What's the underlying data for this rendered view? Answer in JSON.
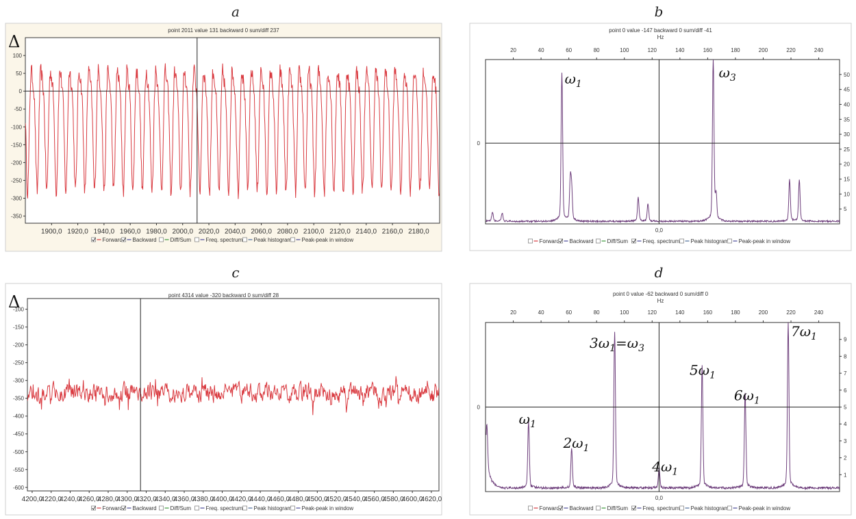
{
  "panel_letters": [
    "a",
    "b",
    "c",
    "d"
  ],
  "legend_items": [
    "Forward",
    "Backward",
    "Diff/Sum",
    "Freq. spectrum",
    "Peak histogram",
    "Peak-peak in window"
  ],
  "chart_data": [
    {
      "id": "a",
      "type": "line",
      "title": "point 2011 value 131 backward 0  sum/diff 237",
      "ylabel": "Δ",
      "xlim": [
        1880,
        2196
      ],
      "ylim": [
        -370,
        150
      ],
      "xticks": [
        1900,
        1920,
        1940,
        1960,
        1980,
        2000,
        2020,
        2040,
        2060,
        2080,
        2100,
        2120,
        2140,
        2160,
        2180
      ],
      "xtick_labels": [
        "1900,0",
        "1920,0",
        "1940,0",
        "1960,0",
        "1980,0",
        "2000,0",
        "2020,0",
        "2040,0",
        "2060,0",
        "2080,0",
        "2100,0",
        "2120,0",
        "2140,0",
        "2160,0",
        "2180,0"
      ],
      "yticks": [
        100,
        50,
        0,
        -50,
        -100,
        -150,
        -200,
        -250,
        -300,
        -350
      ],
      "ytick_labels": [
        "100",
        "50",
        "0",
        "-50",
        "-100",
        "-150",
        "-200",
        "-250",
        "-300",
        "-350"
      ],
      "zero_line": 0,
      "cursor_x": 2011,
      "series": [
        {
          "color": "#d9393f",
          "kind": "oscillation",
          "period": 7.3,
          "max": 115,
          "min": -275,
          "x_start": 1880,
          "x_end": 2196
        }
      ],
      "legend_checked": [
        true,
        true,
        false,
        false,
        false,
        false
      ]
    },
    {
      "id": "b",
      "type": "line",
      "title": "point 0 value -147 backward 0  sum/diff -41",
      "top_axis_label": "Hz",
      "xlim": [
        0,
        255
      ],
      "ylim": [
        0,
        55
      ],
      "xticks": [
        20,
        40,
        60,
        80,
        100,
        120,
        140,
        160,
        180,
        200,
        220,
        240
      ],
      "xtick_labels": [
        "20",
        "40",
        "60",
        "80",
        "100",
        "120",
        "140",
        "160",
        "180",
        "200",
        "220",
        "240"
      ],
      "yticks_right": [
        5,
        10,
        15,
        20,
        25,
        30,
        35,
        40,
        45,
        50
      ],
      "ytick_right_labels": [
        "5",
        "10",
        "15",
        "20",
        "25",
        "30",
        "35",
        "40",
        "45",
        "50"
      ],
      "left_marker": "0",
      "bottom_center_label": "0,0",
      "cursor_x": 125,
      "hline_y": 27,
      "series": [
        {
          "color": "#6e3f7c",
          "kind": "spectrum",
          "baseline": 0.6,
          "peaks": [
            [
              5,
              2.8
            ],
            [
              12,
              2.5
            ],
            [
              55,
              46
            ],
            [
              61,
              12
            ],
            [
              62,
              10
            ],
            [
              110,
              7.5
            ],
            [
              117,
              5.5
            ],
            [
              164,
              51
            ],
            [
              166,
              8
            ],
            [
              219,
              13
            ],
            [
              226,
              13
            ]
          ]
        }
      ],
      "annotations": [
        {
          "text": "ω",
          "sub": "1",
          "x": 57,
          "y": 47
        },
        {
          "text": "ω",
          "sub": "3",
          "x": 168,
          "y": 49
        }
      ],
      "legend_checked": [
        false,
        true,
        false,
        true,
        false,
        false
      ]
    },
    {
      "id": "c",
      "type": "line",
      "title": "point 4314 value -320 backward 0  sum/diff 28",
      "ylabel": "Δ",
      "xlim": [
        4195,
        4628
      ],
      "ylim": [
        -610,
        -70
      ],
      "xticks": [
        4200,
        4220,
        4240,
        4260,
        4280,
        4300,
        4320,
        4340,
        4360,
        4380,
        4400,
        4420,
        4440,
        4460,
        4480,
        4500,
        4520,
        4540,
        4560,
        4580,
        4600,
        4620
      ],
      "xtick_labels": [
        "4200,0",
        "4220,0",
        "4240,0",
        "4260,0",
        "4280,0",
        "4300,0",
        "4320,0",
        "4340,0",
        "4360,0",
        "4380,0",
        "4400,0",
        "4420,0",
        "4440,0",
        "4460,0",
        "4480,0",
        "4500,0",
        "4520,0",
        "4540,0",
        "4560,0",
        "4580,0",
        "4600,0",
        "4620,0"
      ],
      "yticks": [
        -100,
        -150,
        -200,
        -250,
        -300,
        -350,
        -400,
        -450,
        -500,
        -550,
        -600
      ],
      "ytick_labels": [
        "-100",
        "-150",
        "-200",
        "-250",
        "-300",
        "-350",
        "-400",
        "-450",
        "-500",
        "-550",
        "-600"
      ],
      "cursor_x": 4314,
      "series": [
        {
          "color": "#d9393f",
          "kind": "noise",
          "center": -335,
          "amp": 40,
          "x_start": 4195,
          "x_end": 4628
        }
      ],
      "legend_checked": [
        true,
        true,
        false,
        false,
        false,
        false
      ]
    },
    {
      "id": "d",
      "type": "line",
      "title": "point 0 value -62 backward 0  sum/diff 0",
      "top_axis_label": "Hz",
      "xlim": [
        0,
        255
      ],
      "ylim": [
        0,
        10
      ],
      "xticks": [
        20,
        40,
        60,
        80,
        100,
        120,
        140,
        160,
        180,
        200,
        220,
        240
      ],
      "xtick_labels": [
        "20",
        "40",
        "60",
        "80",
        "100",
        "120",
        "140",
        "160",
        "180",
        "200",
        "220",
        "240"
      ],
      "yticks_right": [
        1,
        2,
        3,
        4,
        5,
        6,
        7,
        8,
        9
      ],
      "ytick_right_labels": [
        "1",
        "2",
        "3",
        "4",
        "5",
        "6",
        "7",
        "8",
        "9"
      ],
      "left_marker": "0",
      "bottom_center_label": "0,0",
      "cursor_x": 125,
      "hline_y": 5,
      "series": [
        {
          "color": "#6e3f7c",
          "kind": "spectrum",
          "baseline": 0.15,
          "peaks": [
            [
              1,
              2.3
            ],
            [
              31,
              3.6
            ],
            [
              62,
              2.2
            ],
            [
              93,
              8.6
            ],
            [
              125,
              1.1
            ],
            [
              156,
              6.7
            ],
            [
              187,
              5.2
            ],
            [
              218,
              9.1
            ]
          ]
        }
      ],
      "annotations": [
        {
          "text": "ω",
          "sub": "1",
          "x": 24,
          "y": 4.0
        },
        {
          "text": "2ω",
          "sub": "1",
          "x": 56,
          "y": 2.6
        },
        {
          "text": "3ω",
          "sub": "1",
          "tail": "=ω",
          "sub2": "3",
          "x": 75,
          "y": 8.5
        },
        {
          "text": "4ω",
          "sub": "1",
          "x": 120,
          "y": 1.2
        },
        {
          "text": "5ω",
          "sub": "1",
          "x": 147,
          "y": 6.9
        },
        {
          "text": "6ω",
          "sub": "1",
          "x": 179,
          "y": 5.4
        },
        {
          "text": "7ω",
          "sub": "1",
          "x": 220,
          "y": 9.2
        }
      ],
      "legend_checked": [
        false,
        true,
        false,
        true,
        false,
        false
      ]
    }
  ]
}
